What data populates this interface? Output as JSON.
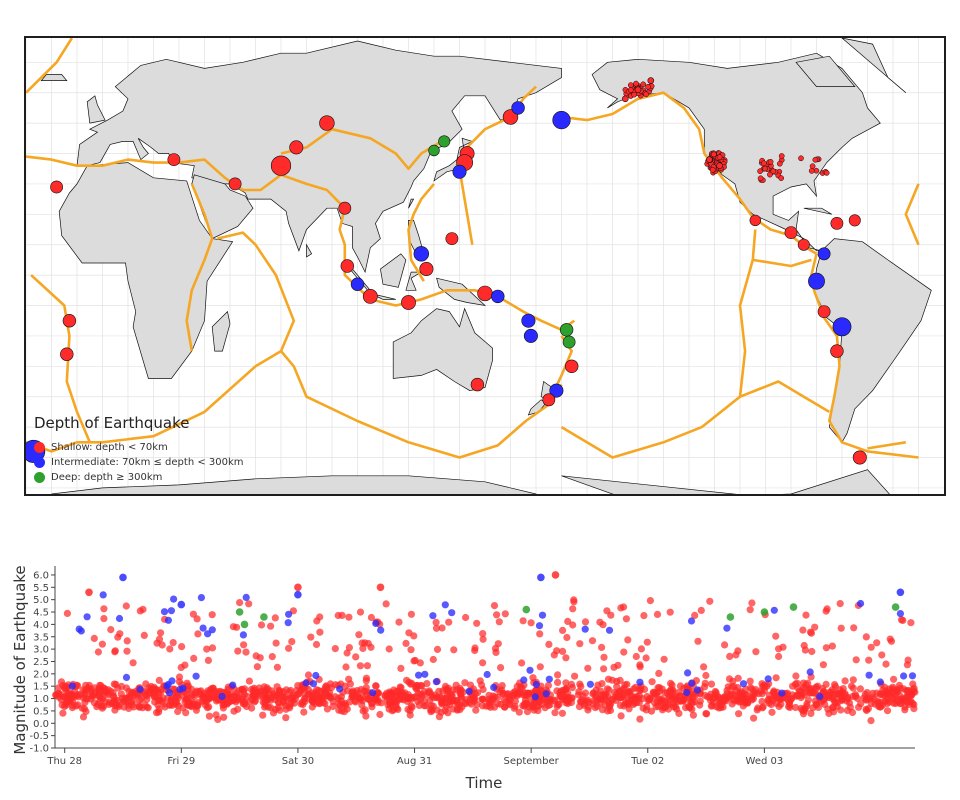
{
  "chart_data": [
    {
      "type": "scatter",
      "kind": "geographic-map",
      "legend": {
        "title": "Depth of Earthquake",
        "placement": "bottom-left",
        "entries": [
          {
            "label": "Shallow: depth < 70km",
            "color": "#ff2a2a"
          },
          {
            "label": "Intermediate: 70km ≤ depth < 300km",
            "color": "#2a2aff"
          },
          {
            "label": "Deep: depth ≥ 300km",
            "color": "#2ea02e"
          }
        ]
      },
      "plate_boundary_color": "#f5a623",
      "land_color": "#dcdcdc",
      "grid": true,
      "note_points": "marker size scales with magnitude; locations given as lon/lat",
      "points": [
        {
          "lon": 147,
          "lat": -36,
          "cat": "shallow",
          "mag": 4.5
        },
        {
          "lon": -118,
          "lat": 36,
          "cat": "shallow",
          "mag": 1.5
        },
        {
          "lon": -122,
          "lat": 38,
          "cat": "shallow",
          "mag": 1.5
        },
        {
          "lon": -150,
          "lat": 61,
          "cat": "shallow",
          "mag": 1.5
        },
        {
          "lon": -155,
          "lat": 58,
          "cat": "shallow",
          "mag": 2.0
        },
        {
          "lon": -145,
          "lat": 64,
          "cat": "shallow",
          "mag": 1.5
        },
        {
          "lon": 160,
          "lat": 52,
          "cat": "shallow",
          "mag": 4.8
        },
        {
          "lon": 163,
          "lat": 55,
          "cat": "intermediate",
          "mag": 4.5
        },
        {
          "lon": 180,
          "lat": 51,
          "cat": "intermediate",
          "mag": 5.2
        },
        {
          "lon": 143,
          "lat": 40,
          "cat": "shallow",
          "mag": 4.7
        },
        {
          "lon": 142,
          "lat": 37,
          "cat": "shallow",
          "mag": 5.0
        },
        {
          "lon": 140,
          "lat": 34,
          "cat": "intermediate",
          "mag": 4.6
        },
        {
          "lon": 134,
          "lat": 44,
          "cat": "deep",
          "mag": 4.3
        },
        {
          "lon": 130,
          "lat": 41,
          "cat": "deep",
          "mag": 4.2
        },
        {
          "lon": 125,
          "lat": 7,
          "cat": "intermediate",
          "mag": 4.8
        },
        {
          "lon": 127,
          "lat": 2,
          "cat": "shallow",
          "mag": 4.6
        },
        {
          "lon": 120,
          "lat": -9,
          "cat": "shallow",
          "mag": 4.7
        },
        {
          "lon": 96,
          "lat": 3,
          "cat": "shallow",
          "mag": 4.5
        },
        {
          "lon": 100,
          "lat": -3,
          "cat": "intermediate",
          "mag": 4.5
        },
        {
          "lon": 105,
          "lat": -7,
          "cat": "shallow",
          "mag": 4.7
        },
        {
          "lon": 95,
          "lat": 22,
          "cat": "shallow",
          "mag": 4.4
        },
        {
          "lon": 70,
          "lat": 36,
          "cat": "shallow",
          "mag": 5.5
        },
        {
          "lon": 52,
          "lat": 30,
          "cat": "shallow",
          "mag": 4.4
        },
        {
          "lon": 28,
          "lat": 38,
          "cat": "shallow",
          "mag": 4.4
        },
        {
          "lon": 76,
          "lat": 42,
          "cat": "shallow",
          "mag": 4.6
        },
        {
          "lon": 88,
          "lat": 50,
          "cat": "shallow",
          "mag": 4.8
        },
        {
          "lon": 137,
          "lat": 12,
          "cat": "shallow",
          "mag": 4.4
        },
        {
          "lon": 150,
          "lat": -6,
          "cat": "shallow",
          "mag": 4.8
        },
        {
          "lon": 155,
          "lat": -7,
          "cat": "intermediate",
          "mag": 4.5
        },
        {
          "lon": 167,
          "lat": -15,
          "cat": "intermediate",
          "mag": 4.6
        },
        {
          "lon": 168,
          "lat": -20,
          "cat": "intermediate",
          "mag": 4.6
        },
        {
          "lon": -178,
          "lat": -18,
          "cat": "deep",
          "mag": 4.5
        },
        {
          "lon": -177,
          "lat": -22,
          "cat": "deep",
          "mag": 4.4
        },
        {
          "lon": -176,
          "lat": -30,
          "cat": "shallow",
          "mag": 4.5
        },
        {
          "lon": 178,
          "lat": -38,
          "cat": "intermediate",
          "mag": 4.6
        },
        {
          "lon": 175,
          "lat": -41,
          "cat": "shallow",
          "mag": 4.4
        },
        {
          "lon": -104,
          "lat": 18,
          "cat": "shallow",
          "mag": 4.2
        },
        {
          "lon": -90,
          "lat": 14,
          "cat": "shallow",
          "mag": 4.4
        },
        {
          "lon": -77,
          "lat": 7,
          "cat": "intermediate",
          "mag": 4.4
        },
        {
          "lon": -80,
          "lat": -2,
          "cat": "intermediate",
          "mag": 5.0
        },
        {
          "lon": -77,
          "lat": -12,
          "cat": "shallow",
          "mag": 4.4
        },
        {
          "lon": -70,
          "lat": -17,
          "cat": "intermediate",
          "mag": 5.3
        },
        {
          "lon": -72,
          "lat": -25,
          "cat": "shallow",
          "mag": 4.5
        },
        {
          "lon": -63,
          "lat": -60,
          "cat": "shallow",
          "mag": 4.6
        },
        {
          "lon": -27,
          "lat": -58,
          "cat": "intermediate",
          "mag": 5.9
        },
        {
          "lon": -13,
          "lat": -15,
          "cat": "shallow",
          "mag": 4.5
        },
        {
          "lon": -14,
          "lat": -26,
          "cat": "shallow",
          "mag": 4.5
        },
        {
          "lon": -18,
          "lat": 29,
          "cat": "shallow",
          "mag": 4.4
        },
        {
          "lon": -72,
          "lat": 17,
          "cat": "shallow",
          "mag": 4.4
        },
        {
          "lon": -65,
          "lat": 18,
          "cat": "shallow",
          "mag": 4.3
        },
        {
          "lon": -85,
          "lat": 10,
          "cat": "shallow",
          "mag": 4.3
        }
      ]
    },
    {
      "type": "scatter",
      "xlabel": "Time",
      "ylabel": "Magnitude of Earthquake",
      "x_tick_labels": [
        "Thu 28",
        "Fri 29",
        "Sat 30",
        "Aug 31",
        "September",
        "Tue 02",
        "Wed 03"
      ],
      "x_range": [
        "2023-08-27T22:00",
        "2023-09-04T07:00"
      ],
      "y_tick_labels": [
        "-1.0",
        "-0.5",
        "0.0",
        "0.5",
        "1.0",
        "1.5",
        "2.0",
        "2.5",
        "3.0",
        "3.5",
        "4.0",
        "4.5",
        "5.0",
        "5.5",
        "6.0"
      ],
      "ylim": [
        -1.0,
        6.2
      ],
      "grid": false,
      "series": [
        {
          "name": "Shallow: depth < 70km",
          "color": "#ff2a2a"
        },
        {
          "name": "Intermediate: 70km ≤ depth < 300km",
          "color": "#2a2aff"
        },
        {
          "name": "Deep: depth ≥ 300km",
          "color": "#2ea02e"
        }
      ],
      "notable_points": [
        {
          "t": "2023-08-28T12:00",
          "mag": 5.9,
          "cat": "intermediate"
        },
        {
          "t": "2023-08-29T00:00",
          "mag": 4.8,
          "cat": "intermediate"
        },
        {
          "t": "2023-08-29T12:00",
          "mag": 4.5,
          "cat": "deep"
        },
        {
          "t": "2023-08-29T13:00",
          "mag": 4.0,
          "cat": "deep"
        },
        {
          "t": "2023-08-29T17:00",
          "mag": 4.3,
          "cat": "deep"
        },
        {
          "t": "2023-08-30T17:00",
          "mag": 5.5,
          "cat": "shallow"
        },
        {
          "t": "2023-08-30T00:00",
          "mag": 5.5,
          "cat": "shallow"
        },
        {
          "t": "2023-08-31T23:00",
          "mag": 4.6,
          "cat": "deep"
        },
        {
          "t": "2023-09-01T02:00",
          "mag": 5.9,
          "cat": "intermediate"
        },
        {
          "t": "2023-09-01T05:00",
          "mag": 6.0,
          "cat": "shallow"
        },
        {
          "t": "2023-09-02T17:00",
          "mag": 4.3,
          "cat": "deep"
        },
        {
          "t": "2023-09-03T00:00",
          "mag": 4.5,
          "cat": "deep"
        },
        {
          "t": "2023-09-03T06:00",
          "mag": 4.7,
          "cat": "deep"
        },
        {
          "t": "2023-09-04T03:00",
          "mag": 4.7,
          "cat": "deep"
        },
        {
          "t": "2023-09-04T04:00",
          "mag": 5.3,
          "cat": "intermediate"
        },
        {
          "t": "2023-08-28T05:00",
          "mag": 5.3,
          "cat": "shallow"
        },
        {
          "t": "2023-08-30T00:00",
          "mag": 5.2,
          "cat": "intermediate"
        }
      ],
      "bulk_distribution": "about 1,800 shallow events clustered between magnitude 0.0 and 2.5 across the whole period"
    }
  ]
}
